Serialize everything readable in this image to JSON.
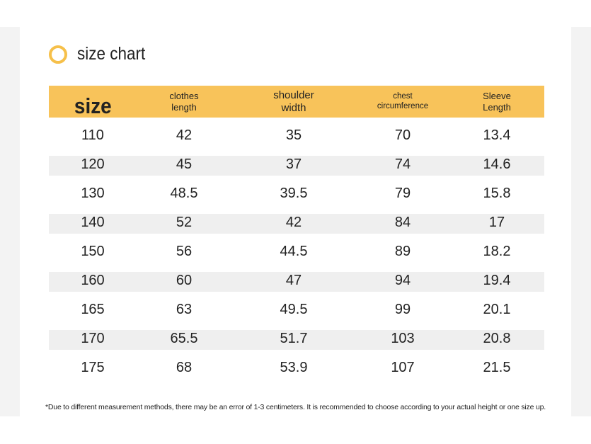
{
  "title": "size chart",
  "colors": {
    "accent": "#f8c35a",
    "ring": "#f6c04a",
    "row_shade": "#efefef"
  },
  "headers": [
    {
      "line1": "size",
      "line2": ""
    },
    {
      "line1": "clothes",
      "line2": "length"
    },
    {
      "line1": "shoulder",
      "line2": "width"
    },
    {
      "line1": "chest",
      "line2": "circumference"
    },
    {
      "line1": "Sleeve",
      "line2": "Length"
    }
  ],
  "rows": [
    [
      "110",
      "42",
      "35",
      "70",
      "13.4"
    ],
    [
      "120",
      "45",
      "37",
      "74",
      "14.6"
    ],
    [
      "130",
      "48.5",
      "39.5",
      "79",
      "15.8"
    ],
    [
      "140",
      "52",
      "42",
      "84",
      "17"
    ],
    [
      "150",
      "56",
      "44.5",
      "89",
      "18.2"
    ],
    [
      "160",
      "60",
      "47",
      "94",
      "19.4"
    ],
    [
      "165",
      "63",
      "49.5",
      "99",
      "20.1"
    ],
    [
      "170",
      "65.5",
      "51.7",
      "103",
      "20.8"
    ],
    [
      "175",
      "68",
      "53.9",
      "107",
      "21.5"
    ]
  ],
  "note": "*Due to different measurement methods, there may be an error of 1-3 centimeters. It is recommended to choose according to your actual height or one size up."
}
